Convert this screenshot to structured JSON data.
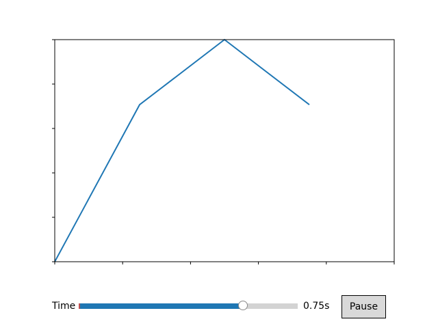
{
  "chart_data": {
    "type": "line",
    "x": [
      0,
      0.25,
      0.5,
      0.75
    ],
    "series": [
      {
        "values": [
          0,
          0.707,
          1.0,
          0.707
        ],
        "color": "#1f77b4"
      }
    ],
    "xlim": [
      0,
      1
    ],
    "ylim": [
      0,
      1
    ],
    "x_ticks": [
      0,
      0.2,
      0.4,
      0.6,
      0.8,
      1.0
    ],
    "y_ticks": [
      0,
      0.2,
      0.4,
      0.6,
      0.8,
      1.0
    ],
    "tick_labels_visible": false,
    "grid": false,
    "title": "",
    "xlabel": "",
    "ylabel": ""
  },
  "controls": {
    "slider_label": "Time",
    "slider_value": 0.75,
    "slider_min": 0,
    "slider_max": 1,
    "value_text": "0.75s",
    "pause_label": "Pause",
    "track_color": "#d3d3d3",
    "fill_color": "#1f77b4"
  }
}
